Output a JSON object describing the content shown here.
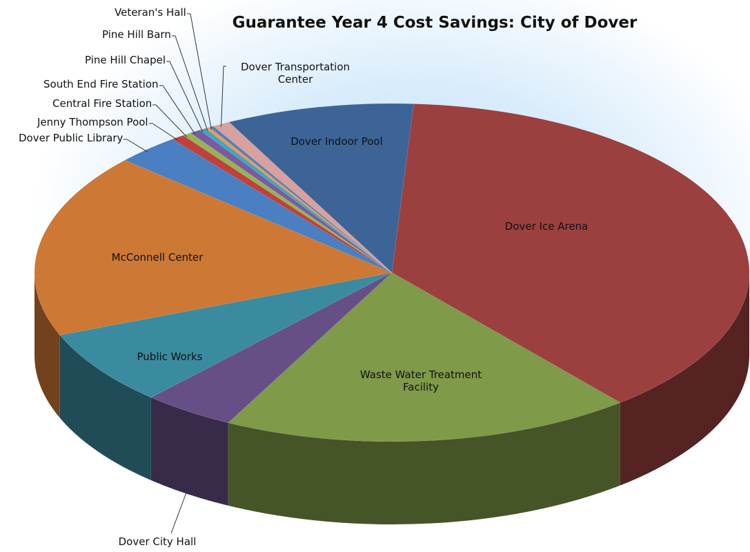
{
  "chart_data": {
    "type": "pie3d",
    "title": "Guarantee Year 4 Cost Savings: City of Dover",
    "categories": [
      "Dover Ice Arena",
      "Waste Water Treatment Facility",
      "Dover City Hall",
      "Public Works",
      "McConnell Center",
      "Dover Public Library",
      "Jenny Thompson Pool",
      "Central Fire Station",
      "South End Fire Station",
      "Pine Hill Chapel",
      "Pine Hill Barn",
      "Veteran's Hall",
      "Dover Transportation Center",
      "Dover Indoor Pool"
    ],
    "values": [
      38,
      18.6,
      4.2,
      7.2,
      17.6,
      2.9,
      0.6,
      0.4,
      0.5,
      0.3,
      0.2,
      0.2,
      0.8,
      8.5
    ],
    "colors": [
      "#9b403e",
      "#7f9a48",
      "#664f86",
      "#3a8ba0",
      "#cd7834",
      "#4a7fc1",
      "#c0413c",
      "#95b453",
      "#7b5ba0",
      "#40a6c3",
      "#f79646",
      "#4f81bd",
      "#d9a0a0",
      "#3c6497"
    ]
  }
}
